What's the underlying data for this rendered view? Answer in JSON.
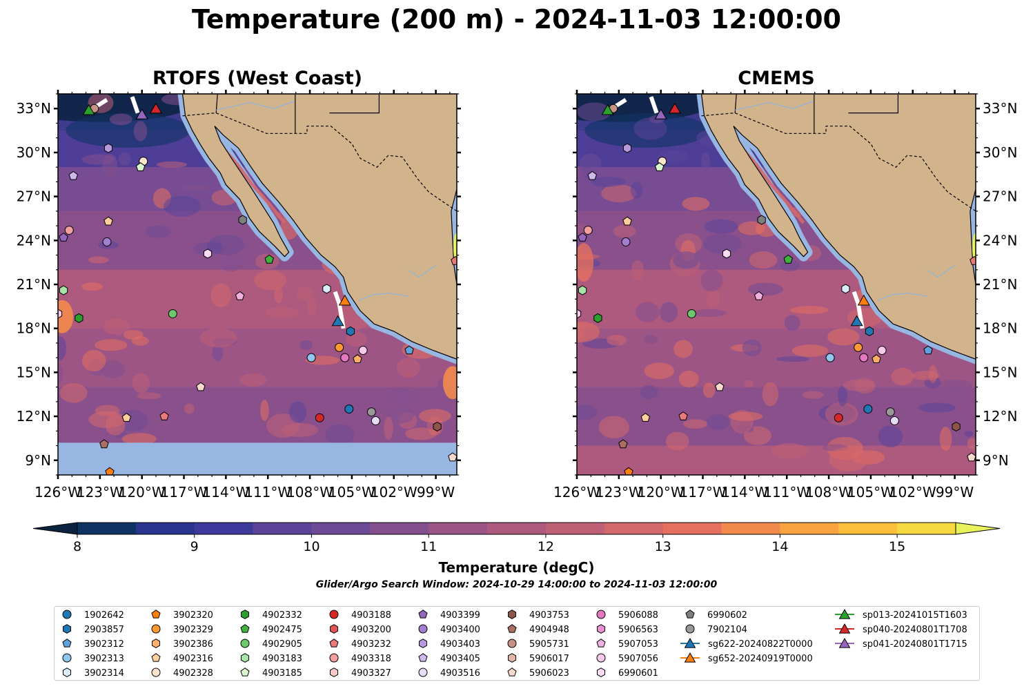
{
  "title": "Temperature (200 m) - 2024-11-03 12:00:00",
  "panels": [
    {
      "title": "RTOFS (West Coast)"
    },
    {
      "title": "CMEMS"
    }
  ],
  "colors": {
    "land": "#d2b48c",
    "shelf": "#97b6e1",
    "border": "#000000"
  },
  "chart_data": {
    "type": "heatmap",
    "variable": "Temperature (degC)",
    "xlim": [
      -126.0,
      -97.5
    ],
    "ylim": [
      8.0,
      34.0
    ],
    "x_ticks": [
      "126°W",
      "123°W",
      "120°W",
      "117°W",
      "114°W",
      "111°W",
      "108°W",
      "105°W",
      "102°W",
      "99°W"
    ],
    "x_tick_values": [
      -126,
      -123,
      -120,
      -117,
      -114,
      -111,
      -108,
      -105,
      -102,
      -99
    ],
    "y_ticks": [
      "9°N",
      "12°N",
      "15°N",
      "18°N",
      "21°N",
      "24°N",
      "27°N",
      "30°N",
      "33°N"
    ],
    "y_tick_values": [
      9,
      12,
      15,
      18,
      21,
      24,
      27,
      30,
      33
    ],
    "colorbar": {
      "label": "Temperature (degC)",
      "min": 7.5,
      "max": 15.5,
      "step": 0.5,
      "ticks": [
        "8",
        "9",
        "10",
        "11",
        "12",
        "13",
        "14",
        "15"
      ],
      "tick_values": [
        8,
        9,
        10,
        11,
        12,
        13,
        14,
        15
      ],
      "extend": "both",
      "colors": [
        "#0b2340",
        "#0f3463",
        "#2a3590",
        "#3e3a9c",
        "#5a4399",
        "#6d4a95",
        "#834f8e",
        "#9a5586",
        "#ad5a7e",
        "#bf6176",
        "#d3686c",
        "#e5705f",
        "#f38a4d",
        "#f9a242",
        "#fbbf3d",
        "#f5d842",
        "#e8f35b"
      ]
    },
    "search_window": "Glider/Argo Search Window: 2024-10-29 14:00:00 to 2024-11-03 12:00:00",
    "legend_columns": 10,
    "legend": [
      {
        "name": "1902642",
        "marker": "circle",
        "color": "#1f77b4"
      },
      {
        "name": "2903857",
        "marker": "hexagon",
        "color": "#1f77b4"
      },
      {
        "name": "3902312",
        "marker": "pentagon",
        "color": "#5fa2dd"
      },
      {
        "name": "3902313",
        "marker": "circle",
        "color": "#8fc7ee"
      },
      {
        "name": "3902314",
        "marker": "hexagon",
        "color": "#d9ecfa"
      },
      {
        "name": "3902320",
        "marker": "pentagon",
        "color": "#ff7f0e"
      },
      {
        "name": "3902329",
        "marker": "circle",
        "color": "#ff9a33"
      },
      {
        "name": "3902386",
        "marker": "hexagon",
        "color": "#ffb068"
      },
      {
        "name": "4902316",
        "marker": "pentagon",
        "color": "#ffcf9e"
      },
      {
        "name": "4902328",
        "marker": "circle",
        "color": "#ffe6cc"
      },
      {
        "name": "4902332",
        "marker": "hexagon",
        "color": "#2ca02c"
      },
      {
        "name": "4902475",
        "marker": "pentagon",
        "color": "#3fb23f"
      },
      {
        "name": "4902905",
        "marker": "circle",
        "color": "#6cca6c"
      },
      {
        "name": "4903183",
        "marker": "hexagon",
        "color": "#a8e3a8"
      },
      {
        "name": "4903185",
        "marker": "pentagon",
        "color": "#d9f7cf"
      },
      {
        "name": "4903188",
        "marker": "circle",
        "color": "#d62728"
      },
      {
        "name": "4903200",
        "marker": "hexagon",
        "color": "#e05455"
      },
      {
        "name": "4903232",
        "marker": "pentagon",
        "color": "#ea7a7a"
      },
      {
        "name": "4903318",
        "marker": "circle",
        "color": "#f29f9f"
      },
      {
        "name": "4903327",
        "marker": "hexagon",
        "color": "#f8c9c9"
      },
      {
        "name": "4903399",
        "marker": "pentagon",
        "color": "#9467bd"
      },
      {
        "name": "4903400",
        "marker": "circle",
        "color": "#a27fcc"
      },
      {
        "name": "4903403",
        "marker": "hexagon",
        "color": "#b899dc"
      },
      {
        "name": "4903405",
        "marker": "pentagon",
        "color": "#cfb8ec"
      },
      {
        "name": "4903516",
        "marker": "circle",
        "color": "#e6dcf7"
      },
      {
        "name": "4903753",
        "marker": "hexagon",
        "color": "#8c564b"
      },
      {
        "name": "4904948",
        "marker": "pentagon",
        "color": "#a86f62"
      },
      {
        "name": "5905731",
        "marker": "circle",
        "color": "#c69284"
      },
      {
        "name": "5906017",
        "marker": "hexagon",
        "color": "#e3b5a8"
      },
      {
        "name": "5906023",
        "marker": "pentagon",
        "color": "#f8d9cd"
      },
      {
        "name": "5906088",
        "marker": "circle",
        "color": "#e377c2"
      },
      {
        "name": "5906563",
        "marker": "hexagon",
        "color": "#ea92d0"
      },
      {
        "name": "5907053",
        "marker": "pentagon",
        "color": "#f2b0df"
      },
      {
        "name": "5907056",
        "marker": "circle",
        "color": "#f8c8ea"
      },
      {
        "name": "6990601",
        "marker": "hexagon",
        "color": "#fbdcf2"
      },
      {
        "name": "6990602",
        "marker": "pentagon",
        "color": "#7f7f7f"
      },
      {
        "name": "7902104",
        "marker": "circle",
        "color": "#999999"
      },
      {
        "name": "sg622-20240822T0000",
        "marker": "triangle",
        "color": "#1f77b4",
        "line": true
      },
      {
        "name": "sg652-20240919T0000",
        "marker": "triangle",
        "color": "#ff7f0e",
        "line": true
      },
      {
        "name": "sp013-20241015T1603",
        "marker": "triangle",
        "color": "#2ca02c",
        "line": true
      },
      {
        "name": "sp040-20240801T1708",
        "marker": "triangle",
        "color": "#d62728",
        "line": true
      },
      {
        "name": "sp041-20240801T1715",
        "marker": "triangle",
        "color": "#9467bd",
        "line": true
      }
    ],
    "floats": [
      {
        "lon": -123.4,
        "lat": 33.0,
        "marker": "circle",
        "color": "#c69284"
      },
      {
        "lon": -122.4,
        "lat": 30.3,
        "marker": "hexagon",
        "color": "#b899dc"
      },
      {
        "lon": -119.9,
        "lat": 29.4,
        "marker": "circle",
        "color": "#ffe6cc"
      },
      {
        "lon": -120.1,
        "lat": 29.0,
        "marker": "pentagon",
        "color": "#d9f7cf"
      },
      {
        "lon": -124.9,
        "lat": 28.4,
        "marker": "pentagon",
        "color": "#cfb8ec"
      },
      {
        "lon": -122.4,
        "lat": 25.3,
        "marker": "pentagon",
        "color": "#ffcf9e"
      },
      {
        "lon": -125.2,
        "lat": 24.7,
        "marker": "circle",
        "color": "#f29f9f"
      },
      {
        "lon": -125.6,
        "lat": 24.2,
        "marker": "pentagon",
        "color": "#9467bd"
      },
      {
        "lon": -122.5,
        "lat": 23.9,
        "marker": "circle",
        "color": "#a27fcc"
      },
      {
        "lon": -112.8,
        "lat": 25.4,
        "marker": "hexagon",
        "color": "#7f7f7f"
      },
      {
        "lon": -115.3,
        "lat": 23.1,
        "marker": "hexagon",
        "color": "#fbdcf2"
      },
      {
        "lon": -110.9,
        "lat": 22.7,
        "marker": "pentagon",
        "color": "#3fb23f"
      },
      {
        "lon": -125.6,
        "lat": 20.6,
        "marker": "hexagon",
        "color": "#a8e3a8"
      },
      {
        "lon": -113.0,
        "lat": 20.2,
        "marker": "pentagon",
        "color": "#f2b0df"
      },
      {
        "lon": -126.0,
        "lat": 19.0,
        "marker": "hexagon",
        "color": "#f8c8ea"
      },
      {
        "lon": -124.5,
        "lat": 18.7,
        "marker": "hexagon",
        "color": "#2ca02c"
      },
      {
        "lon": -117.8,
        "lat": 19.0,
        "marker": "circle",
        "color": "#6cca6c"
      },
      {
        "lon": -106.8,
        "lat": 20.7,
        "marker": "hexagon",
        "color": "#d9ecfa"
      },
      {
        "lon": -105.1,
        "lat": 17.8,
        "marker": "hexagon",
        "color": "#1f77b4"
      },
      {
        "lon": -105.9,
        "lat": 16.7,
        "marker": "circle",
        "color": "#ff9a33"
      },
      {
        "lon": -105.5,
        "lat": 16.0,
        "marker": "circle",
        "color": "#e377c2"
      },
      {
        "lon": -104.6,
        "lat": 15.9,
        "marker": "pentagon",
        "color": "#ffb068"
      },
      {
        "lon": -104.2,
        "lat": 16.5,
        "marker": "circle",
        "color": "#f8c8ea"
      },
      {
        "lon": -107.9,
        "lat": 16.0,
        "marker": "circle",
        "color": "#8fc7ee"
      },
      {
        "lon": -100.9,
        "lat": 16.5,
        "marker": "pentagon",
        "color": "#5fa2dd"
      },
      {
        "lon": -115.8,
        "lat": 14.0,
        "marker": "pentagon",
        "color": "#f8d9cd"
      },
      {
        "lon": -121.1,
        "lat": 11.9,
        "marker": "pentagon",
        "color": "#ffcf9e"
      },
      {
        "lon": -118.4,
        "lat": 12.0,
        "marker": "pentagon",
        "color": "#ea7a7a"
      },
      {
        "lon": -107.3,
        "lat": 11.9,
        "marker": "circle",
        "color": "#d62728"
      },
      {
        "lon": -105.2,
        "lat": 12.5,
        "marker": "circle",
        "color": "#1f77b4"
      },
      {
        "lon": -103.6,
        "lat": 12.3,
        "marker": "circle",
        "color": "#999999"
      },
      {
        "lon": -103.3,
        "lat": 11.7,
        "marker": "circle",
        "color": "#e6dcf7"
      },
      {
        "lon": -98.9,
        "lat": 11.3,
        "marker": "hexagon",
        "color": "#8c564b"
      },
      {
        "lon": -122.7,
        "lat": 10.1,
        "marker": "pentagon",
        "color": "#a86f62"
      },
      {
        "lon": -122.3,
        "lat": 8.2,
        "marker": "pentagon",
        "color": "#ff7f0e"
      },
      {
        "lon": -97.8,
        "lat": 9.2,
        "marker": "pentagon",
        "color": "#f8d9cd"
      },
      {
        "lon": -97.6,
        "lat": 22.6,
        "marker": "pentagon",
        "color": "#ea7a7a"
      }
    ],
    "gliders": [
      {
        "name": "sg622-20240822T0000",
        "lon": -106.0,
        "lat": 18.5,
        "color": "#1f77b4",
        "track": [
          [
            -106.2,
            20.5
          ],
          [
            -105.9,
            19.7
          ],
          [
            -105.6,
            18.0
          ]
        ]
      },
      {
        "name": "sg652-20240919T0000",
        "lon": -105.5,
        "lat": 19.9,
        "color": "#ff7f0e",
        "track": []
      },
      {
        "name": "sp013-20241015T1603",
        "lon": -123.8,
        "lat": 32.9,
        "color": "#2ca02c",
        "track": [
          [
            -123.5,
            33.0
          ],
          [
            -122.5,
            33.6
          ]
        ]
      },
      {
        "name": "sp040-20240801T1708",
        "lon": -119.0,
        "lat": 33.0,
        "color": "#d62728",
        "track": []
      },
      {
        "name": "sp041-20240801T1715",
        "lon": -120.0,
        "lat": 32.6,
        "color": "#9467bd",
        "track": [
          [
            -120.3,
            32.7
          ],
          [
            -120.7,
            33.8
          ]
        ]
      }
    ]
  }
}
